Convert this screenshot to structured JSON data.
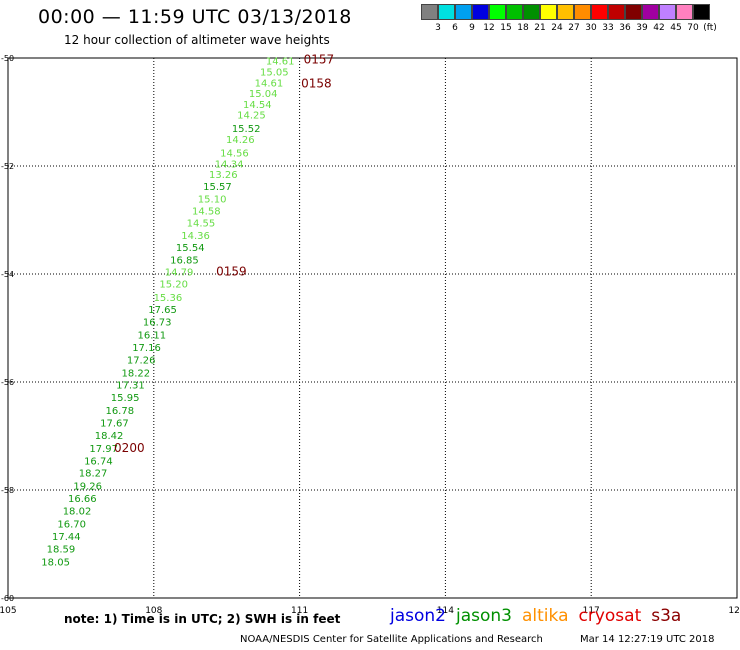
{
  "header": {
    "title": "00:00 — 11:59 UTC 03/13/2018",
    "subtitle": "12 hour collection of altimeter wave heights"
  },
  "color_scale": {
    "swatches": [
      "#808080",
      "#00e0e0",
      "#00a0f0",
      "#0000e0",
      "#00ff00",
      "#00c000",
      "#009000",
      "#ffff00",
      "#ffc000",
      "#ff8c00",
      "#ff0000",
      "#c00000",
      "#800000",
      "#a000a0",
      "#c080ff",
      "#ff80c0",
      "#000000"
    ],
    "labels": [
      "3",
      "6",
      "9",
      "12",
      "15",
      "18",
      "21",
      "24",
      "27",
      "30",
      "33",
      "36",
      "39",
      "42",
      "45",
      "70",
      "(ft)"
    ]
  },
  "map": {
    "lon_ticks": [
      "105",
      "108",
      "111",
      "114",
      "117",
      "120"
    ],
    "lat_ticks": [
      "-50",
      "-52",
      "-54",
      "-56",
      "-58",
      "-60"
    ],
    "lon_range": [
      105,
      120
    ],
    "lat_range": [
      -50,
      -60
    ]
  },
  "chart_data": {
    "type": "scatter",
    "title": "00:00 — 11:59 UTC 03/13/2018",
    "x_axis": "longitude",
    "y_axis": "latitude",
    "satellite": "jason3",
    "points": [
      {
        "lon": 110.6,
        "lat": -50.05,
        "v": "14.61"
      },
      {
        "lon": 110.48,
        "lat": -50.25,
        "v": "15.05"
      },
      {
        "lon": 110.37,
        "lat": -50.45,
        "v": "14.61"
      },
      {
        "lon": 110.25,
        "lat": -50.65,
        "v": "15.04"
      },
      {
        "lon": 110.13,
        "lat": -50.85,
        "v": "14.54"
      },
      {
        "lon": 110.01,
        "lat": -51.05,
        "v": "14.25"
      },
      {
        "lon": 109.9,
        "lat": -51.3,
        "v": "15.52"
      },
      {
        "lon": 109.78,
        "lat": -51.5,
        "v": "14.26"
      },
      {
        "lon": 109.66,
        "lat": -51.75,
        "v": "14.56"
      },
      {
        "lon": 109.55,
        "lat": -51.95,
        "v": "14.34"
      },
      {
        "lon": 109.43,
        "lat": -52.15,
        "v": "13.26"
      },
      {
        "lon": 109.31,
        "lat": -52.37,
        "v": "15.57"
      },
      {
        "lon": 109.2,
        "lat": -52.6,
        "v": "15.10"
      },
      {
        "lon": 109.08,
        "lat": -52.82,
        "v": "14.58"
      },
      {
        "lon": 108.97,
        "lat": -53.05,
        "v": "14.55"
      },
      {
        "lon": 108.86,
        "lat": -53.28,
        "v": "14.36"
      },
      {
        "lon": 108.75,
        "lat": -53.5,
        "v": "15.54"
      },
      {
        "lon": 108.63,
        "lat": -53.73,
        "v": "16.85"
      },
      {
        "lon": 108.52,
        "lat": -53.95,
        "v": "14.79"
      },
      {
        "lon": 108.41,
        "lat": -54.18,
        "v": "15.20"
      },
      {
        "lon": 108.29,
        "lat": -54.43,
        "v": "15.36"
      },
      {
        "lon": 108.18,
        "lat": -54.65,
        "v": "17.65"
      },
      {
        "lon": 108.07,
        "lat": -54.88,
        "v": "16.73"
      },
      {
        "lon": 107.96,
        "lat": -55.12,
        "v": "16.11"
      },
      {
        "lon": 107.85,
        "lat": -55.35,
        "v": "17.16"
      },
      {
        "lon": 107.74,
        "lat": -55.58,
        "v": "17.26"
      },
      {
        "lon": 107.63,
        "lat": -55.82,
        "v": "18.22"
      },
      {
        "lon": 107.52,
        "lat": -56.05,
        "v": "17.31"
      },
      {
        "lon": 107.41,
        "lat": -56.28,
        "v": "15.95"
      },
      {
        "lon": 107.3,
        "lat": -56.52,
        "v": "16.78"
      },
      {
        "lon": 107.19,
        "lat": -56.75,
        "v": "17.67"
      },
      {
        "lon": 107.08,
        "lat": -56.98,
        "v": "18.42"
      },
      {
        "lon": 106.97,
        "lat": -57.22,
        "v": "17.97"
      },
      {
        "lon": 106.86,
        "lat": -57.45,
        "v": "16.74"
      },
      {
        "lon": 106.75,
        "lat": -57.68,
        "v": "18.27"
      },
      {
        "lon": 106.64,
        "lat": -57.92,
        "v": "19.26"
      },
      {
        "lon": 106.53,
        "lat": -58.15,
        "v": "16.66"
      },
      {
        "lon": 106.42,
        "lat": -58.38,
        "v": "18.02"
      },
      {
        "lon": 106.31,
        "lat": -58.62,
        "v": "16.70"
      },
      {
        "lon": 106.2,
        "lat": -58.85,
        "v": "17.44"
      },
      {
        "lon": 106.09,
        "lat": -59.08,
        "v": "18.59"
      },
      {
        "lon": 105.98,
        "lat": -59.32,
        "v": "18.05"
      }
    ],
    "time_markers": [
      {
        "lon": 111.0,
        "lat": -50.03,
        "label": "0157"
      },
      {
        "lon": 110.95,
        "lat": -50.47,
        "label": "0158"
      },
      {
        "lon": 109.2,
        "lat": -53.95,
        "label": "0159"
      },
      {
        "lon": 107.1,
        "lat": -57.22,
        "label": "0200"
      }
    ]
  },
  "footer": {
    "note": "note:  1) Time is in UTC;  2) SWH is in feet",
    "satellites": [
      {
        "name": "jason2",
        "color": "#0000e0"
      },
      {
        "name": "jason3",
        "color": "#009000"
      },
      {
        "name": "altika",
        "color": "#ff9000"
      },
      {
        "name": "cryosat",
        "color": "#e00000"
      },
      {
        "name": "s3a",
        "color": "#8b0000"
      }
    ],
    "credit": "NOAA/NESDIS Center for Satellite Applications and Research",
    "timestamp": "Mar 14 12:27:19 UTC 2018"
  }
}
